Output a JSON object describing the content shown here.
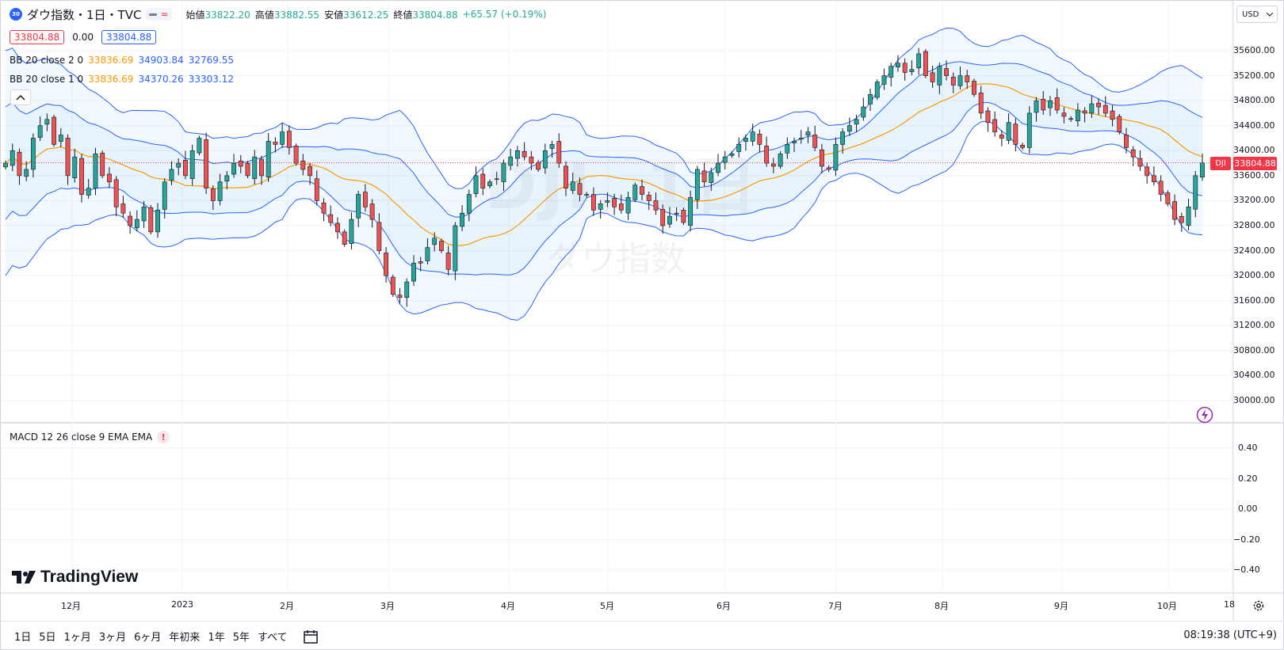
{
  "symbol": {
    "badge": "30",
    "title": "ダウ指数・1日・TVC",
    "toggle_icon_1": "minus-icon",
    "toggle_icon_2": "approx-wave-icon"
  },
  "ohlc": {
    "open_label": "始値",
    "open": "33822.20",
    "high_label": "高値",
    "high": "33882.55",
    "low_label": "安値",
    "low": "33612.25",
    "close_label": "終値",
    "close": "33804.88",
    "change": "+65.57 (+0.19%)"
  },
  "price_boxes": {
    "bid": "33804.88",
    "spread": "0.00",
    "ask": "33804.88"
  },
  "indicators": [
    {
      "label": "BB 20 close 2 0",
      "basis": "33836.69",
      "upper": "34903.84",
      "lower": "32769.55"
    },
    {
      "label": "BB 20 close 1 0",
      "basis": "33836.69",
      "upper": "34370.26",
      "lower": "33303.12"
    }
  ],
  "macd": {
    "label": "MACD 12 26 close 9 EMA EMA",
    "alert": "!"
  },
  "currency": "USD",
  "last_price": {
    "symbol_tag": "DJI",
    "value": "33804.88"
  },
  "price_axis": [
    "35600.00",
    "35200.00",
    "34800.00",
    "34400.00",
    "34000.00",
    "33600.00",
    "33200.00",
    "32800.00",
    "32400.00",
    "32000.00",
    "31600.00",
    "31200.00",
    "30800.00",
    "30400.00",
    "30000.00"
  ],
  "macd_axis": [
    "0.40",
    "0.20",
    "0.00",
    "−0.20",
    "−0.40"
  ],
  "time_axis": [
    "12月",
    "2023",
    "2月",
    "3月",
    "4月",
    "5月",
    "6月",
    "7月",
    "8月",
    "9月",
    "10月",
    "18"
  ],
  "watermark": {
    "ticker": "DJI, 1日",
    "name": "ダウ指数"
  },
  "logo_text": "TradingView",
  "ranges": [
    "1日",
    "5日",
    "1ヶ月",
    "3ヶ月",
    "6ヶ月",
    "年初来",
    "1年",
    "5年",
    "すべて"
  ],
  "clock": "08:19:38 (UTC+9)",
  "colors": {
    "up": "#26a69a",
    "down": "#ef5350",
    "band": "#2962ff",
    "basis": "#ff9800",
    "accent": "#2962ff"
  },
  "chart_data": {
    "type": "candlestick",
    "y_range": [
      29800,
      35900
    ],
    "y_ticks": [
      35600,
      35200,
      34800,
      34400,
      34000,
      33600,
      33200,
      32800,
      32400,
      32000,
      31600,
      31200,
      30800,
      30400,
      30000
    ],
    "x_labels": [
      "12月",
      "2023",
      "2月",
      "3月",
      "4月",
      "5月",
      "6月",
      "7月",
      "8月",
      "9月",
      "10月",
      "18"
    ],
    "series": [
      {
        "name": "close",
        "values": [
          33800,
          34000,
          33600,
          33700,
          34200,
          34400,
          34500,
          34100,
          34250,
          33600,
          33900,
          33300,
          33400,
          33950,
          33600,
          33500,
          33100,
          33000,
          32800,
          32900,
          33100,
          32700,
          33050,
          33500,
          33700,
          33800,
          33600,
          34000,
          34200,
          33400,
          33200,
          33500,
          33600,
          33800,
          33750,
          33600,
          33900,
          33600,
          34150,
          34100,
          34300,
          34050,
          33800,
          33700,
          33600,
          33200,
          33000,
          32850,
          32700,
          32500,
          32900,
          33300,
          33100,
          32900,
          32400,
          32000,
          31700,
          31650,
          31900,
          32200,
          32200,
          32450,
          32600,
          32400,
          32100,
          32800,
          33000,
          33300,
          33600,
          33400,
          33500,
          33550,
          33800,
          33900,
          34000,
          33900,
          33800,
          33700,
          34000,
          34100,
          33800,
          33400,
          33500,
          33300,
          33300,
          33050,
          33150,
          33200,
          33100,
          33050,
          33250,
          33450,
          33300,
          33200,
          33050,
          32800,
          32950,
          33000,
          32850,
          33250,
          33700,
          33500,
          33650,
          33800,
          33900,
          33950,
          34100,
          34200,
          34300,
          34100,
          33800,
          33750,
          33950,
          34100,
          34150,
          34200,
          34300,
          34050,
          33750,
          33700,
          34100,
          34300,
          34400,
          34500,
          34700,
          34900,
          35100,
          35200,
          35350,
          35400,
          35250,
          35300,
          35550,
          35200,
          35100,
          35350,
          35200,
          35050,
          35200,
          35100,
          34900,
          34600,
          34450,
          34300,
          34200,
          34450,
          34100,
          34050,
          34600,
          34800,
          34650,
          34800,
          34650,
          34550,
          34500,
          34650,
          34600,
          34750,
          34700,
          34600,
          34500,
          34300,
          34050,
          33900,
          33750,
          33600,
          33500,
          33300,
          33150,
          32900,
          32850,
          33100,
          33600,
          33805
        ]
      },
      {
        "name": "BB 20 close 2 0 basis",
        "values": [
          33836.69
        ]
      },
      {
        "name": "BB 20 close 2 0 upper",
        "values": [
          34903.84
        ]
      },
      {
        "name": "BB 20 close 2 0 lower",
        "values": [
          32769.55
        ]
      },
      {
        "name": "BB 20 close 1 0 upper",
        "values": [
          34370.26
        ]
      },
      {
        "name": "BB 20 close 1 0 lower",
        "values": [
          33303.12
        ]
      }
    ],
    "last": {
      "open": 33822.2,
      "high": 33882.55,
      "low": 33612.25,
      "close": 33804.88
    },
    "macd_range": [
      -0.5,
      0.5
    ],
    "grid": true,
    "legend": "top-left"
  }
}
